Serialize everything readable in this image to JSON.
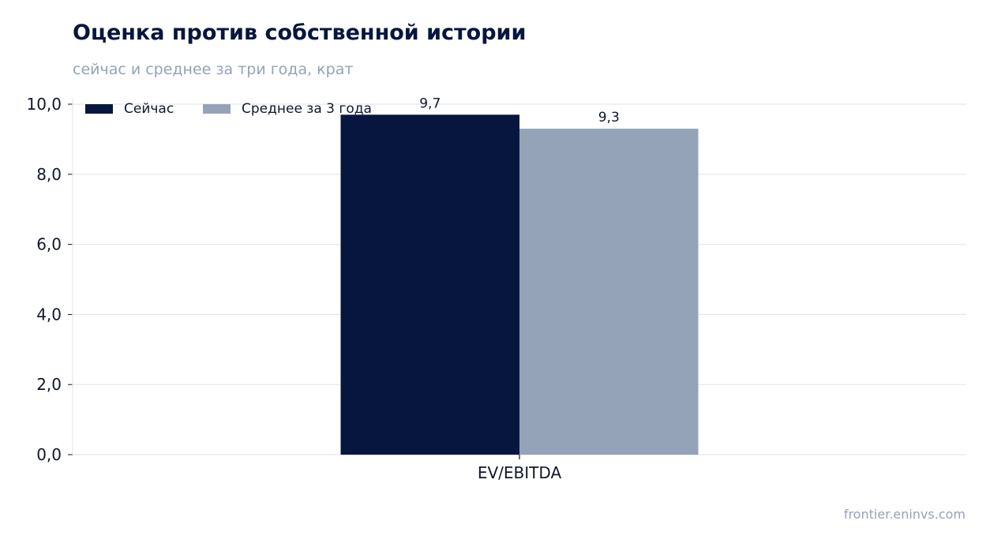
{
  "title": "Оценка против собственной истории",
  "subtitle": "сейчас и среднее за три года, крат",
  "source": "frontier.eninvs.com",
  "colors": {
    "title": "#06163f",
    "muted": "#94a3b8",
    "grid": "#e2e8f0",
    "axis_text": "#0f172a"
  },
  "chart_data": {
    "type": "bar",
    "categories": [
      "EV/EBITDA"
    ],
    "series": [
      {
        "name": "Сейчас",
        "values": [
          9.7
        ],
        "color": "#06163f",
        "label": "9,7"
      },
      {
        "name": "Среднее за 3 года",
        "values": [
          9.3
        ],
        "color": "#94a3b8",
        "label": "9,3"
      }
    ],
    "ylim": [
      0,
      10
    ],
    "yticks": [
      0,
      2,
      4,
      6,
      8,
      10
    ],
    "ytick_labels": [
      "0,0",
      "2,0",
      "4,0",
      "6,0",
      "8,0",
      "10,0"
    ],
    "grid": true,
    "legend": "top-left",
    "xlabel": "",
    "ylabel": ""
  }
}
